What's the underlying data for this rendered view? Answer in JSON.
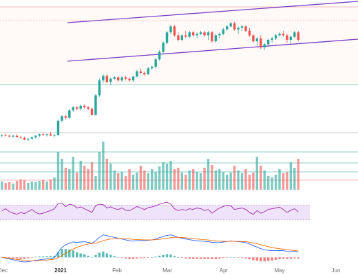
{
  "colors": {
    "up": "#26a69a",
    "down": "#ef5350",
    "channel": "#7b3fc4",
    "rsi_line": "#9c27b0",
    "rsi_band": "#efe3fb",
    "macd_line": "#2962ff",
    "signal_line": "#ff6d00",
    "level_red": "#f4a6a6",
    "level_green": "#6ec2b7",
    "price_zone": "#fffaf8"
  },
  "chart_data": {
    "type": "candlestick",
    "title": "",
    "xlabel": "",
    "ylabel": "",
    "x_axis_labels": [
      "Dec",
      "2021",
      "Feb",
      "Mar",
      "Apr",
      "May",
      "Jun"
    ],
    "bold_x_labels": [
      "2021"
    ],
    "grid": false,
    "panels": [
      "price",
      "volume",
      "rsi",
      "macd"
    ],
    "price": {
      "ylim": [
        0,
        100
      ],
      "candles": [
        [
          14,
          15,
          13,
          14.5
        ],
        [
          14.5,
          15.5,
          13.5,
          14
        ],
        [
          14,
          14.8,
          13,
          13.5
        ],
        [
          13.5,
          14.5,
          12.5,
          14
        ],
        [
          14,
          15,
          13,
          13
        ],
        [
          13,
          14,
          12,
          12.5
        ],
        [
          12.5,
          13.5,
          11,
          11.5
        ],
        [
          11.5,
          12.5,
          10.5,
          12
        ],
        [
          12,
          13.5,
          11.5,
          13
        ],
        [
          13,
          14.5,
          12,
          14
        ],
        [
          14,
          15.5,
          13,
          15
        ],
        [
          15,
          16,
          14,
          14.5
        ],
        [
          14.5,
          15.5,
          13.5,
          15
        ],
        [
          15,
          16.5,
          14,
          14
        ],
        [
          14,
          15,
          13,
          14.5
        ],
        [
          14.5,
          25,
          14,
          24
        ],
        [
          24,
          28,
          23,
          27
        ],
        [
          27,
          28,
          25,
          26
        ],
        [
          26,
          32,
          25.5,
          31
        ],
        [
          31,
          34,
          30,
          33
        ],
        [
          33,
          34,
          31,
          32
        ],
        [
          32,
          35,
          31,
          34
        ],
        [
          34,
          35,
          32,
          33
        ],
        [
          33,
          34,
          31,
          32
        ],
        [
          32,
          33,
          27,
          28
        ],
        [
          28,
          42,
          27.5,
          41
        ],
        [
          41,
          52,
          40,
          51
        ],
        [
          51,
          55,
          49,
          54
        ],
        [
          54,
          55,
          49,
          50
        ],
        [
          50,
          53,
          48,
          52
        ],
        [
          52,
          54,
          51,
          53
        ],
        [
          53,
          54,
          50,
          51
        ],
        [
          51,
          54,
          50,
          53
        ],
        [
          53,
          54,
          51,
          52
        ],
        [
          52,
          53,
          50,
          51
        ],
        [
          51,
          54,
          50,
          53.5
        ],
        [
          53.5,
          58,
          53,
          57
        ],
        [
          57,
          59,
          55,
          56
        ],
        [
          56,
          57,
          54,
          55
        ],
        [
          55,
          60,
          54.5,
          59
        ],
        [
          59,
          61,
          58,
          60
        ],
        [
          60,
          66,
          59,
          65
        ],
        [
          65,
          71,
          64,
          70
        ],
        [
          70,
          77,
          69,
          76
        ],
        [
          76,
          84,
          75,
          83
        ],
        [
          83,
          88,
          82,
          87
        ],
        [
          87,
          88,
          80,
          81
        ],
        [
          81,
          83,
          77,
          78
        ],
        [
          78,
          82,
          77,
          81
        ],
        [
          81,
          84,
          79,
          80
        ],
        [
          80,
          84,
          79,
          83
        ],
        [
          83,
          84,
          80,
          81
        ],
        [
          81,
          83,
          79,
          82
        ],
        [
          82,
          84,
          81,
          83
        ],
        [
          83,
          84,
          80,
          81
        ],
        [
          81,
          84,
          78,
          83
        ],
        [
          83,
          84,
          76,
          77
        ],
        [
          77,
          82,
          76,
          81
        ],
        [
          81,
          83,
          79,
          82
        ],
        [
          82,
          86,
          81,
          85
        ],
        [
          85,
          88,
          84,
          87
        ],
        [
          87,
          90,
          86,
          89
        ],
        [
          89,
          90,
          84,
          85
        ],
        [
          85,
          87,
          82,
          86
        ],
        [
          86,
          88,
          84,
          87
        ],
        [
          87,
          88,
          83,
          84
        ],
        [
          84,
          86,
          80,
          81
        ],
        [
          81,
          82,
          76,
          77
        ],
        [
          77,
          80,
          74,
          79
        ],
        [
          79,
          81,
          72,
          73
        ],
        [
          73,
          76,
          71,
          75
        ],
        [
          75,
          79,
          74,
          78
        ],
        [
          78,
          80,
          76,
          79
        ],
        [
          79,
          82,
          78,
          81
        ],
        [
          81,
          83,
          80,
          82
        ],
        [
          82,
          84,
          80,
          81
        ],
        [
          81,
          82,
          76,
          78
        ],
        [
          78,
          81,
          75,
          80
        ],
        [
          80,
          84,
          79,
          83
        ],
        [
          83,
          84,
          77,
          78
        ]
      ]
    },
    "volume": {
      "values": [
        12,
        10,
        11,
        9,
        13,
        15,
        14,
        10,
        12,
        11,
        13,
        14,
        12,
        15,
        18,
        55,
        45,
        32,
        30,
        48,
        25,
        42,
        35,
        30,
        40,
        20,
        55,
        70,
        45,
        38,
        28,
        24,
        26,
        20,
        30,
        22,
        25,
        35,
        28,
        24,
        30,
        26,
        34,
        40,
        38,
        42,
        30,
        32,
        25,
        22,
        28,
        30,
        26,
        24,
        32,
        45,
        36,
        28,
        30,
        26,
        22,
        25,
        35,
        28,
        24,
        30,
        22,
        25,
        48,
        35,
        28,
        20,
        18,
        22,
        30,
        24,
        26,
        40,
        32,
        45
      ],
      "max": 80
    },
    "rsi": {
      "range": [
        0,
        100
      ],
      "upper": 70,
      "lower": 30,
      "values": [
        55,
        60,
        52,
        48,
        45,
        50,
        47,
        52,
        58,
        50,
        46,
        48,
        52,
        55,
        60,
        74,
        75,
        66,
        72,
        70,
        62,
        65,
        60,
        55,
        50,
        68,
        72,
        71,
        62,
        65,
        60,
        58,
        62,
        56,
        55,
        60,
        66,
        62,
        58,
        63,
        65,
        68,
        72,
        75,
        78,
        72,
        60,
        55,
        58,
        56,
        60,
        58,
        62,
        60,
        55,
        58,
        48,
        55,
        62,
        66,
        70,
        68,
        58,
        60,
        62,
        58,
        50,
        45,
        55,
        48,
        52,
        58,
        60,
        62,
        64,
        58,
        50,
        56,
        60,
        52
      ]
    },
    "macd": {
      "macd": [
        0,
        -0.5,
        -1,
        -1.5,
        -2,
        -2.5,
        -2.8,
        -2.6,
        -2.2,
        -1.8,
        -1.5,
        -1.2,
        -1,
        -0.6,
        -0.2,
        3,
        6,
        7.5,
        8.5,
        9.2,
        9,
        9.2,
        9.4,
        9,
        8.5,
        10,
        12,
        13.5,
        13,
        12.5,
        12,
        11.5,
        11,
        10.5,
        10,
        9.8,
        10,
        10.2,
        10,
        10.2,
        10.5,
        11,
        11.8,
        12.5,
        13.2,
        13.5,
        12.8,
        12,
        11.5,
        11,
        10.6,
        10.2,
        10,
        9.8,
        9.6,
        9.4,
        9,
        8.8,
        8.9,
        9.2,
        9.5,
        9.8,
        9.6,
        9.4,
        9.2,
        8.8,
        8,
        7,
        6.2,
        5.2,
        4.6,
        4.2,
        4,
        4,
        4.1,
        4,
        3.6,
        3.4,
        3.5,
        3.2
      ],
      "signal": [
        0,
        -0.2,
        -0.5,
        -0.9,
        -1.2,
        -1.5,
        -1.8,
        -2,
        -2.1,
        -2.1,
        -2,
        -1.8,
        -1.6,
        -1.4,
        -1.1,
        -0.2,
        1,
        2.5,
        3.8,
        5,
        6,
        6.8,
        7.5,
        8,
        8.3,
        8.6,
        9.2,
        10,
        10.6,
        11,
        11.2,
        11.3,
        11.3,
        11.2,
        11,
        10.8,
        10.7,
        10.6,
        10.5,
        10.5,
        10.5,
        10.6,
        10.8,
        11.1,
        11.4,
        11.8,
        12,
        12,
        11.9,
        11.7,
        11.5,
        11.2,
        11,
        10.8,
        10.6,
        10.4,
        10.1,
        9.9,
        9.7,
        9.6,
        9.6,
        9.6,
        9.6,
        9.6,
        9.5,
        9.4,
        9.1,
        8.7,
        8.2,
        7.6,
        7,
        6.4,
        5.9,
        5.5,
        5.2,
        4.9,
        4.6,
        4.3,
        4.1,
        3.9
      ],
      "range": [
        -4,
        15
      ]
    }
  }
}
